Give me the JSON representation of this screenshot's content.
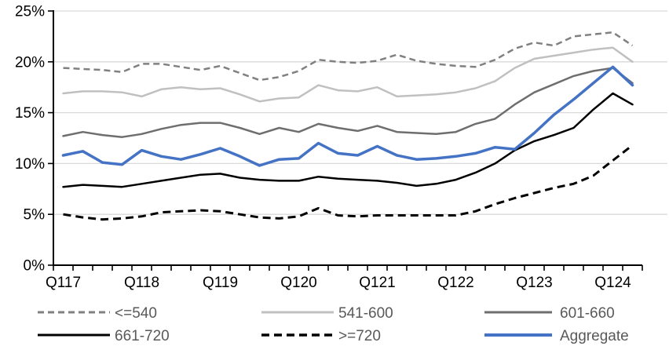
{
  "chart_data": {
    "type": "line",
    "title": "",
    "grid": true,
    "legend_position": "bottom",
    "colors": {
      "axis": "#000000",
      "gridline": "#d9d9d9",
      "legend_text": "#595959",
      "axis_text": "#000000",
      "accent_blue": "#4472c4",
      "light_gray": "#c0c0c0",
      "mid_gray": "#808080",
      "dark_gray": "#6e6e6e",
      "black": "#000000"
    },
    "y_axis": {
      "min": 0,
      "max": 25,
      "step": 5,
      "tick_labels": [
        "0%",
        "5%",
        "10%",
        "15%",
        "20%",
        "25%"
      ]
    },
    "x_axis": {
      "tick_labels": [
        "Q117",
        "Q118",
        "Q119",
        "Q120",
        "Q121",
        "Q122",
        "Q123",
        "Q124"
      ],
      "quarters": [
        "Q117",
        "Q217",
        "Q317",
        "Q417",
        "Q118",
        "Q218",
        "Q318",
        "Q418",
        "Q119",
        "Q219",
        "Q319",
        "Q419",
        "Q120",
        "Q220",
        "Q320",
        "Q420",
        "Q121",
        "Q221",
        "Q321",
        "Q421",
        "Q122",
        "Q222",
        "Q322",
        "Q422",
        "Q123",
        "Q223",
        "Q323",
        "Q423",
        "Q124",
        "Q224"
      ]
    },
    "series": [
      {
        "key": "lte-540",
        "label": "<=540",
        "color": "#808080",
        "width": 2.5,
        "dash": "8 5",
        "legend_row": 0,
        "legend_col": 0,
        "values": [
          19.4,
          19.3,
          19.2,
          19.0,
          19.8,
          19.8,
          19.5,
          19.2,
          19.6,
          18.9,
          18.2,
          18.5,
          19.1,
          20.2,
          20.0,
          19.9,
          20.1,
          20.7,
          20.1,
          19.8,
          19.6,
          19.5,
          20.2,
          21.3,
          21.9,
          21.6,
          22.5,
          22.7,
          22.9,
          21.6
        ]
      },
      {
        "key": "541-600",
        "label": "541-600",
        "color": "#c0c0c0",
        "width": 2.5,
        "dash": "",
        "legend_row": 0,
        "legend_col": 1,
        "values": [
          16.9,
          17.1,
          17.1,
          17.0,
          16.6,
          17.3,
          17.5,
          17.3,
          17.4,
          16.8,
          16.1,
          16.4,
          16.5,
          17.7,
          17.2,
          17.1,
          17.5,
          16.6,
          16.7,
          16.8,
          17.0,
          17.4,
          18.1,
          19.4,
          20.3,
          20.6,
          20.9,
          21.2,
          21.4,
          20.0
        ]
      },
      {
        "key": "601-660",
        "label": "601-660",
        "color": "#6e6e6e",
        "width": 2.5,
        "dash": "",
        "legend_row": 0,
        "legend_col": 2,
        "values": [
          12.7,
          13.1,
          12.8,
          12.6,
          12.9,
          13.4,
          13.8,
          14.0,
          14.0,
          13.5,
          12.9,
          13.5,
          13.1,
          13.9,
          13.5,
          13.2,
          13.7,
          13.1,
          13.0,
          12.9,
          13.1,
          13.9,
          14.4,
          15.8,
          17.0,
          17.8,
          18.6,
          19.1,
          19.4,
          17.9
        ]
      },
      {
        "key": "661-720",
        "label": "661-720",
        "color": "#000000",
        "width": 2.5,
        "dash": "",
        "legend_row": 1,
        "legend_col": 0,
        "values": [
          7.7,
          7.9,
          7.8,
          7.7,
          8.0,
          8.3,
          8.6,
          8.9,
          9.0,
          8.6,
          8.4,
          8.3,
          8.3,
          8.7,
          8.5,
          8.4,
          8.3,
          8.1,
          7.8,
          8.0,
          8.4,
          9.1,
          10.0,
          11.3,
          12.2,
          12.8,
          13.5,
          15.3,
          16.9,
          15.8
        ]
      },
      {
        "key": "gte-720",
        "label": ">=720",
        "color": "#000000",
        "width": 3,
        "dash": "10 6",
        "legend_row": 1,
        "legend_col": 1,
        "values": [
          5.0,
          4.7,
          4.5,
          4.6,
          4.8,
          5.2,
          5.3,
          5.4,
          5.3,
          5.0,
          4.7,
          4.6,
          4.8,
          5.6,
          4.9,
          4.8,
          4.9,
          4.9,
          4.9,
          4.9,
          4.9,
          5.3,
          6.0,
          6.6,
          7.1,
          7.6,
          8.0,
          8.8,
          10.3,
          11.8
        ]
      },
      {
        "key": "aggregate",
        "label": "Aggregate",
        "color": "#4472c4",
        "width": 3.5,
        "dash": "",
        "legend_row": 1,
        "legend_col": 2,
        "values": [
          10.8,
          11.2,
          10.1,
          9.9,
          11.3,
          10.7,
          10.4,
          10.9,
          11.5,
          10.7,
          9.8,
          10.4,
          10.5,
          12.0,
          11.0,
          10.8,
          11.7,
          10.8,
          10.4,
          10.5,
          10.7,
          11.0,
          11.6,
          11.4,
          13.0,
          14.8,
          16.3,
          17.9,
          19.5,
          17.7
        ]
      }
    ]
  }
}
